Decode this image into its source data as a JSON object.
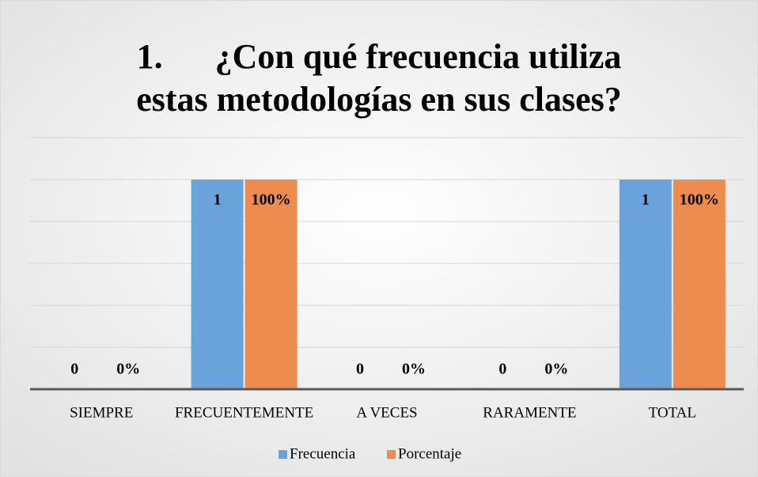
{
  "chart_data": {
    "type": "bar",
    "title": [
      "1.      ¿Con qué frecuencia utiliza",
      "estas metodologías en sus clases?"
    ],
    "categories": [
      "SIEMPRE",
      "FRECUENTEMENTE",
      "A VECES",
      "RARAMENTE",
      "TOTAL"
    ],
    "series": [
      {
        "name": "Frecuencia",
        "color": "#6aa2da",
        "values": [
          0,
          1,
          0,
          0,
          1
        ]
      },
      {
        "name": "Porcentaje",
        "color": "#ee8c4f",
        "values": [
          0,
          1,
          0,
          0,
          1
        ],
        "value_labels": [
          "0%",
          "100%",
          "0%",
          "0%",
          "100%"
        ]
      }
    ],
    "ylim": [
      0,
      1.2
    ],
    "yticks": [
      0,
      0.2,
      0.4,
      0.6,
      0.8,
      1,
      1.2
    ],
    "grid": true,
    "legend": "bottom"
  }
}
